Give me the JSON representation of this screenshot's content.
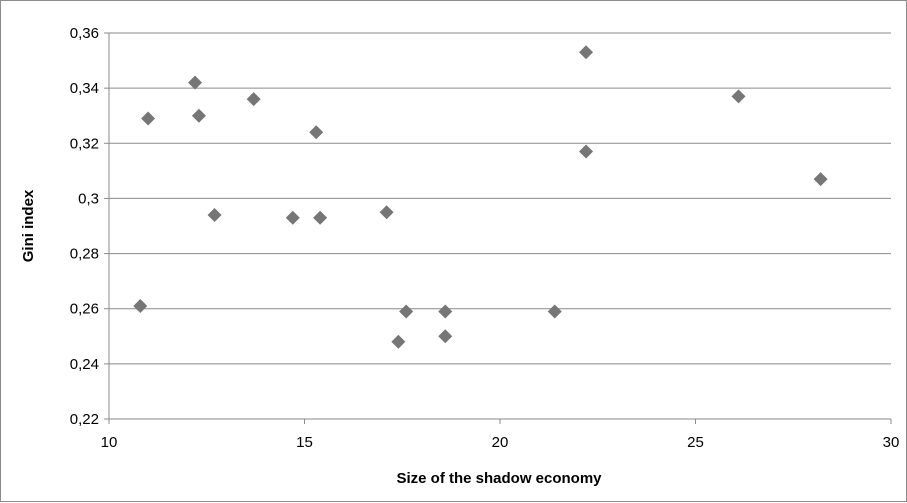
{
  "chart_data": {
    "type": "scatter",
    "title": "",
    "xlabel": "Size of the shadow economy",
    "ylabel": "Gini index",
    "xlim": [
      10,
      30
    ],
    "ylim": [
      0.22,
      0.36
    ],
    "x_ticks": [
      10,
      15,
      20,
      25,
      30
    ],
    "x_tick_labels": [
      "10",
      "15",
      "20",
      "25",
      "30"
    ],
    "y_ticks": [
      0.22,
      0.24,
      0.26,
      0.28,
      0.3,
      0.32,
      0.34,
      0.36
    ],
    "y_tick_labels": [
      "0,22",
      "0,24",
      "0,26",
      "0,28",
      "0,3",
      "0,32",
      "0,34",
      "0,36"
    ],
    "grid": "horizontal",
    "legend": "none",
    "marker": "diamond",
    "marker_color": "#767676",
    "grid_color": "#8a8a8a",
    "series": [
      {
        "points": [
          {
            "x": 10.8,
            "y": 0.261
          },
          {
            "x": 11.0,
            "y": 0.329
          },
          {
            "x": 12.2,
            "y": 0.342
          },
          {
            "x": 12.3,
            "y": 0.33
          },
          {
            "x": 12.7,
            "y": 0.294
          },
          {
            "x": 13.7,
            "y": 0.336
          },
          {
            "x": 14.7,
            "y": 0.293
          },
          {
            "x": 15.3,
            "y": 0.324
          },
          {
            "x": 15.4,
            "y": 0.293
          },
          {
            "x": 17.1,
            "y": 0.295
          },
          {
            "x": 17.4,
            "y": 0.248
          },
          {
            "x": 17.6,
            "y": 0.259
          },
          {
            "x": 18.6,
            "y": 0.259
          },
          {
            "x": 18.6,
            "y": 0.25
          },
          {
            "x": 21.4,
            "y": 0.259
          },
          {
            "x": 22.2,
            "y": 0.353
          },
          {
            "x": 22.2,
            "y": 0.317
          },
          {
            "x": 26.1,
            "y": 0.337
          },
          {
            "x": 28.2,
            "y": 0.307
          }
        ]
      }
    ]
  }
}
